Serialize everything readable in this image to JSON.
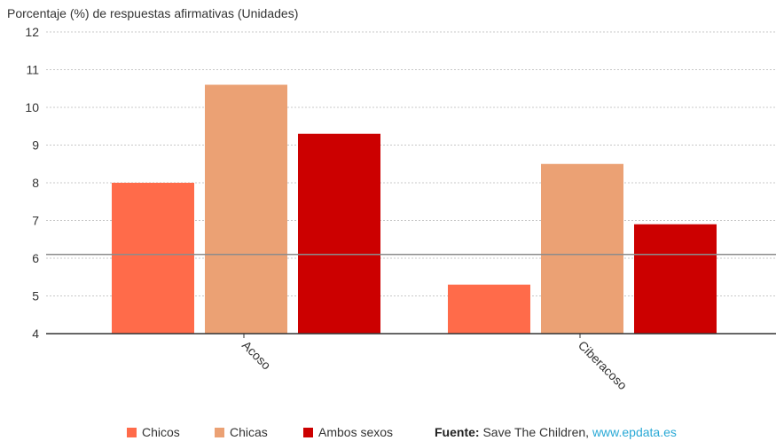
{
  "chart_data": {
    "type": "bar",
    "title": "Porcentaje (%) de respuestas afirmativas (Unidades)",
    "categories": [
      "Acoso",
      "Ciberacoso"
    ],
    "series": [
      {
        "name": "Chicos",
        "color": "#ff6b4a",
        "values": [
          8.0,
          5.3
        ]
      },
      {
        "name": "Chicas",
        "color": "#eba174",
        "values": [
          10.6,
          8.5
        ]
      },
      {
        "name": "Ambos sexos",
        "color": "#cc0000",
        "values": [
          9.3,
          6.9
        ]
      }
    ],
    "yticks": [
      4,
      5,
      6,
      7,
      8,
      9,
      10,
      11,
      12
    ],
    "ylim": [
      4,
      12
    ],
    "reference_line": 6.1,
    "grid": true,
    "legend_position": "bottom"
  },
  "source": {
    "label": "Fuente:",
    "text": "Save The Children,",
    "link": "www.epdata.es"
  }
}
